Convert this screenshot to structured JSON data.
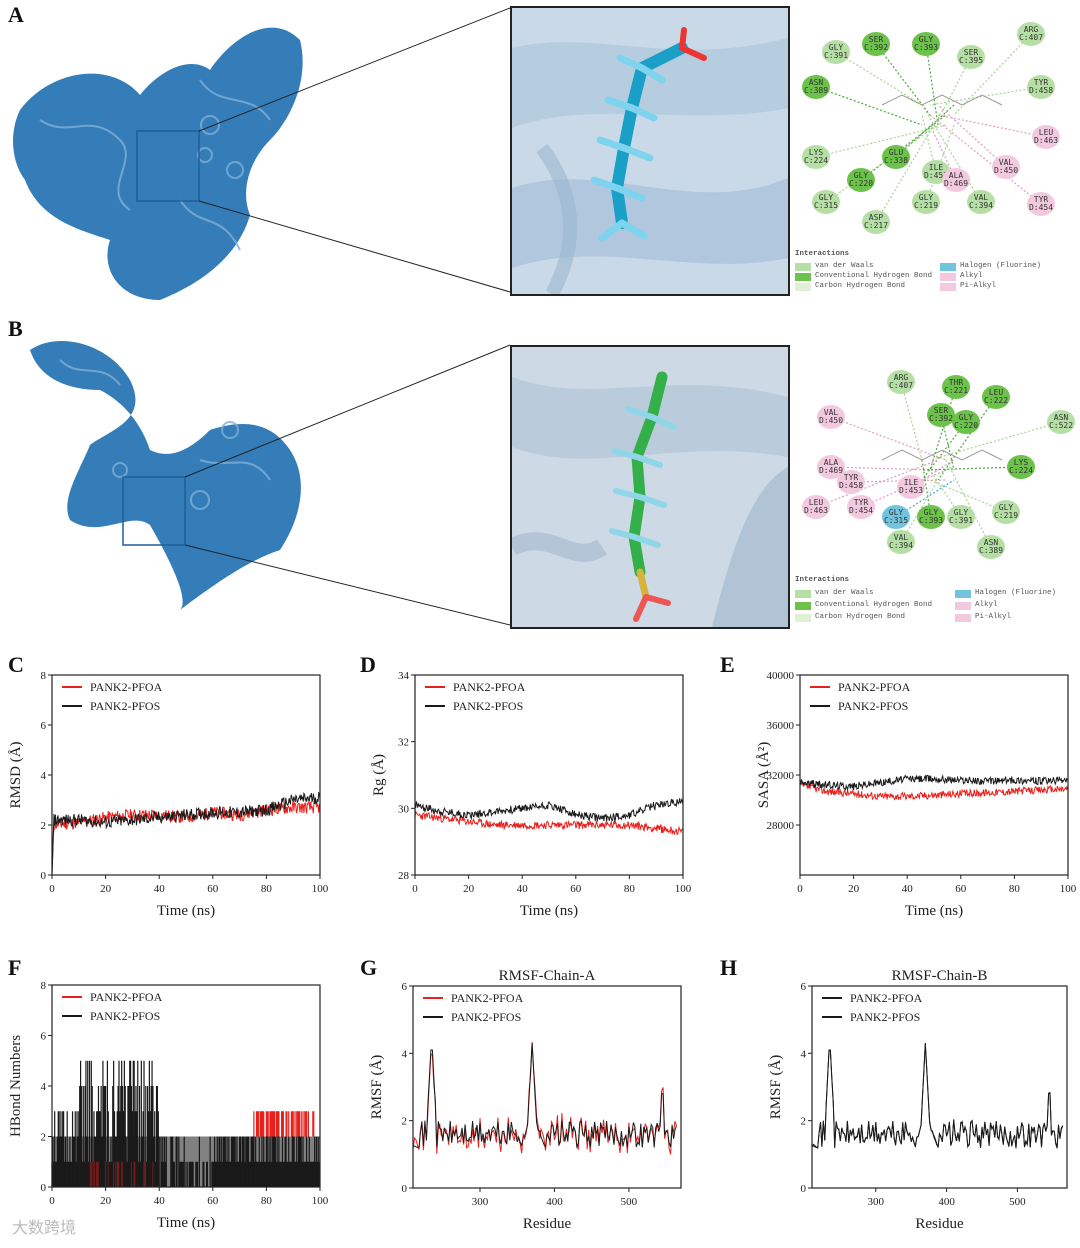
{
  "panels": {
    "A": "A",
    "B": "B",
    "C": "C",
    "D": "D",
    "E": "E",
    "F": "F",
    "G": "G",
    "H": "H"
  },
  "colors": {
    "protein": "#1f6fb0",
    "pfoa": "#2aa6c9",
    "pfos": "#3cb84a",
    "red": "#e8201c",
    "black": "#1a1a1a",
    "vdw": "#b5dfa4",
    "hbond": "#6cc24a",
    "chbond": "#dff0d6",
    "halogen": "#72c3de",
    "alkyl": "#f2c9df"
  },
  "interactions": {
    "title": "Interactions",
    "items": [
      "van der Waals",
      "Conventional Hydrogen Bond",
      "Carbon Hydrogen Bond",
      "Halogen (Fluorine)",
      "Alkyl",
      "Pi-Alkyl"
    ]
  },
  "residuesA": [
    {
      "name": "GLY",
      "id": "C:391",
      "kind": "vdw"
    },
    {
      "name": "SER",
      "id": "C:392",
      "kind": "hbond"
    },
    {
      "name": "GLY",
      "id": "C:393",
      "kind": "hbond"
    },
    {
      "name": "SER",
      "id": "C:395",
      "kind": "vdw"
    },
    {
      "name": "ARG",
      "id": "C:407",
      "kind": "vdw"
    },
    {
      "name": "ASN",
      "id": "C:389",
      "kind": "hbond"
    },
    {
      "name": "TYR",
      "id": "D:458",
      "kind": "vdw"
    },
    {
      "name": "LEU",
      "id": "D:463",
      "kind": "alkyl"
    },
    {
      "name": "LYS",
      "id": "C:224",
      "kind": "vdw"
    },
    {
      "name": "GLU",
      "id": "C:338",
      "kind": "hbond"
    },
    {
      "name": "ILE",
      "id": "D:453",
      "kind": "vdw"
    },
    {
      "name": "ALA",
      "id": "D:469",
      "kind": "alkyl"
    },
    {
      "name": "VAL",
      "id": "D:450",
      "kind": "alkyl"
    },
    {
      "name": "GLY",
      "id": "C:220",
      "kind": "hbond"
    },
    {
      "name": "GLY",
      "id": "C:219",
      "kind": "vdw"
    },
    {
      "name": "VAL",
      "id": "C:394",
      "kind": "vdw"
    },
    {
      "name": "TYR",
      "id": "D:454",
      "kind": "alkyl"
    },
    {
      "name": "GLY",
      "id": "C:315",
      "kind": "vdw"
    },
    {
      "name": "ASP",
      "id": "C:217",
      "kind": "vdw"
    }
  ],
  "residuesB": [
    {
      "name": "ARG",
      "id": "C:407",
      "kind": "vdw"
    },
    {
      "name": "THR",
      "id": "C:221",
      "kind": "hbond"
    },
    {
      "name": "LEU",
      "id": "C:222",
      "kind": "hbond"
    },
    {
      "name": "VAL",
      "id": "D:450",
      "kind": "alkyl"
    },
    {
      "name": "SER",
      "id": "C:392",
      "kind": "hbond"
    },
    {
      "name": "GLY",
      "id": "C:220",
      "kind": "hbond"
    },
    {
      "name": "ASN",
      "id": "C:522",
      "kind": "vdw"
    },
    {
      "name": "ALA",
      "id": "D:469",
      "kind": "alkyl"
    },
    {
      "name": "TYR",
      "id": "D:458",
      "kind": "alkyl"
    },
    {
      "name": "ILE",
      "id": "D:453",
      "kind": "alkyl"
    },
    {
      "name": "LYS",
      "id": "C:224",
      "kind": "hbond"
    },
    {
      "name": "GLY",
      "id": "C:219",
      "kind": "vdw"
    },
    {
      "name": "LEU",
      "id": "D:463",
      "kind": "alkyl"
    },
    {
      "name": "TYR",
      "id": "D:454",
      "kind": "alkyl"
    },
    {
      "name": "GLY",
      "id": "C:315",
      "kind": "halogen"
    },
    {
      "name": "GLY",
      "id": "C:393",
      "kind": "hbond"
    },
    {
      "name": "GLY",
      "id": "C:391",
      "kind": "vdw"
    },
    {
      "name": "VAL",
      "id": "C:394",
      "kind": "vdw"
    },
    {
      "name": "ASN",
      "id": "C:389",
      "kind": "vdw"
    }
  ],
  "chart_data": [
    {
      "id": "C",
      "type": "line",
      "title": "",
      "xlabel": "Time (ns)",
      "ylabel": "RMSD (Å)",
      "xlim": [
        0,
        100
      ],
      "ylim": [
        0,
        8
      ],
      "xticks": [
        "0",
        "20",
        "40",
        "60",
        "80",
        "100"
      ],
      "yticks": [
        "0",
        "2",
        "4",
        "6",
        "8"
      ],
      "series": [
        {
          "name": "PANK2-PFOA",
          "color": "#e8201c",
          "base": [
            2.0,
            2.1,
            2.3,
            2.4,
            2.4,
            2.3,
            2.5,
            2.4,
            2.6,
            2.7,
            2.7
          ],
          "noise": 0.25
        },
        {
          "name": "PANK2-PFOS",
          "color": "#1a1a1a",
          "base": [
            2.2,
            2.2,
            2.1,
            2.2,
            2.3,
            2.4,
            2.5,
            2.5,
            2.6,
            3.0,
            3.1
          ],
          "noise": 0.25
        }
      ]
    },
    {
      "id": "D",
      "type": "line",
      "title": "",
      "xlabel": "Time (ns)",
      "ylabel": "Rg (Å)",
      "xlim": [
        0,
        100
      ],
      "ylim": [
        28,
        34
      ],
      "xticks": [
        "0",
        "20",
        "40",
        "60",
        "80",
        "100"
      ],
      "yticks": [
        "28",
        "30",
        "32",
        "34"
      ],
      "series": [
        {
          "name": "PANK2-PFOA",
          "color": "#e8201c",
          "base": [
            29.8,
            29.7,
            29.6,
            29.5,
            29.5,
            29.5,
            29.5,
            29.5,
            29.5,
            29.4,
            29.3
          ],
          "noise": 0.12
        },
        {
          "name": "PANK2-PFOS",
          "color": "#1a1a1a",
          "base": [
            30.1,
            29.9,
            29.8,
            29.9,
            30.0,
            30.1,
            29.8,
            29.7,
            29.8,
            30.1,
            30.2
          ],
          "noise": 0.12
        }
      ]
    },
    {
      "id": "E",
      "type": "line",
      "title": "",
      "xlabel": "Time (ns)",
      "ylabel": "SASA (Å²)",
      "xlim": [
        0,
        100
      ],
      "ylim": [
        24000,
        40000
      ],
      "xticks": [
        "0",
        "20",
        "40",
        "60",
        "80",
        "100"
      ],
      "yticks": [
        "28000",
        "32000",
        "36000",
        "40000"
      ],
      "series": [
        {
          "name": "PANK2-PFOA",
          "color": "#e8201c",
          "base": [
            31200,
            30700,
            30500,
            30300,
            30300,
            30400,
            30500,
            30600,
            30700,
            30800,
            30900
          ],
          "noise": 300
        },
        {
          "name": "PANK2-PFOS",
          "color": "#1a1a1a",
          "base": [
            31400,
            31200,
            31100,
            31400,
            31700,
            31700,
            31600,
            31500,
            31600,
            31500,
            31600
          ],
          "noise": 300
        }
      ]
    },
    {
      "id": "F",
      "type": "bar",
      "title": "",
      "xlabel": "Time (ns)",
      "ylabel": "HBond Numbers",
      "xlim": [
        0,
        100
      ],
      "ylim": [
        0,
        8
      ],
      "xticks": [
        "0",
        "20",
        "40",
        "60",
        "80",
        "100"
      ],
      "yticks": [
        "0",
        "2",
        "4",
        "6",
        "8"
      ],
      "series": [
        {
          "name": "PANK2-PFOA",
          "color": "#e8201c"
        },
        {
          "name": "PANK2-PFOS",
          "color": "#1a1a1a"
        }
      ]
    },
    {
      "id": "G",
      "type": "line",
      "title": "RMSF-Chain-A",
      "xlabel": "Residue",
      "ylabel": "RMSF (Å)",
      "xlim": [
        210,
        570
      ],
      "ylim": [
        0,
        6
      ],
      "xticks": [
        "300",
        "400",
        "500"
      ],
      "yticks": [
        "0",
        "2",
        "4",
        "6"
      ],
      "series": [
        {
          "name": "PANK2-PFOA",
          "color": "#e8201c"
        },
        {
          "name": "PANK2-PFOS",
          "color": "#1a1a1a"
        }
      ]
    },
    {
      "id": "H",
      "type": "line",
      "title": "RMSF-Chain-B",
      "xlabel": "Residue",
      "ylabel": "RMSF (Å)",
      "xlim": [
        210,
        570
      ],
      "ylim": [
        0,
        6
      ],
      "xticks": [
        "300",
        "400",
        "500"
      ],
      "yticks": [
        "0",
        "2",
        "4",
        "6"
      ],
      "series": [
        {
          "name": "PANK2-PFOA",
          "color": "#1a1a1a"
        },
        {
          "name": "PANK2-PFOS",
          "color": "#1a1a1a"
        }
      ]
    }
  ],
  "watermark": "大数跨境"
}
